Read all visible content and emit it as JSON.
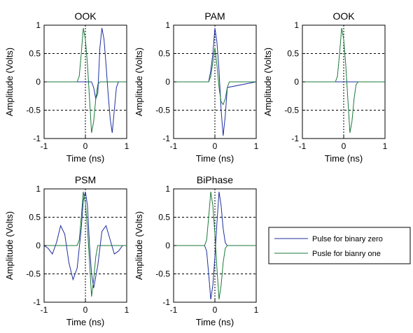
{
  "colors": {
    "zero": "#1f2f9f",
    "one": "#1b7a3a",
    "axis": "#000000",
    "grid": "#000000"
  },
  "legend": {
    "placement": "right",
    "entries": [
      {
        "label": "Pulse for binary zero",
        "color": "#1f2f9f"
      },
      {
        "label": "Pusle for bianry one",
        "color": "#1b7a3a"
      }
    ]
  },
  "chart_data": [
    {
      "type": "line",
      "title": "OOK",
      "xlabel": "Time (ns)",
      "ylabel": "Amplitude (Volts)",
      "xlim": [
        -1,
        1
      ],
      "ylim": [
        -1,
        1
      ],
      "xticks": [
        "-1",
        "0",
        "1"
      ],
      "yticks": [
        "1",
        "0.5",
        "0",
        "-0.5",
        "-1"
      ],
      "grid": "y-dashed at 0.5 and -0.5, x-dotted at 0",
      "series": [
        {
          "color": "#1f2f9f",
          "x": [
            -1,
            0.15,
            0.2,
            0.25,
            0.3,
            0.35,
            0.4,
            0.45,
            0.5,
            0.55,
            0.6,
            0.65,
            0.7,
            0.75,
            0.8,
            0.85,
            0.9,
            1
          ],
          "y": [
            0,
            0,
            -0.1,
            -0.3,
            -0.2,
            0.6,
            0.95,
            0.75,
            0.3,
            -0.2,
            -0.65,
            -0.9,
            -0.5,
            -0.1,
            0,
            0,
            0,
            0
          ]
        },
        {
          "color": "#1b7a3a",
          "x": [
            -1,
            -0.2,
            -0.15,
            -0.1,
            -0.05,
            0,
            0.05,
            0.1,
            0.15,
            0.2,
            0.25,
            0.3,
            0.35,
            1
          ],
          "y": [
            0,
            0,
            0.1,
            0.5,
            0.95,
            0.75,
            0.3,
            -0.3,
            -0.9,
            -0.7,
            -0.3,
            -0.05,
            0,
            0
          ]
        }
      ]
    },
    {
      "type": "line",
      "title": "PAM",
      "xlabel": "Time (ns)",
      "ylabel": "Amplitude (Volts)",
      "xlim": [
        -1,
        1
      ],
      "ylim": [
        -1,
        1
      ],
      "xticks": [
        "-1",
        "0",
        "1"
      ],
      "yticks": [
        "1",
        "0.5",
        "0",
        "-0.5",
        "-1"
      ],
      "grid": "y-dashed at 0.5 and -0.5, x-dotted at 0",
      "series": [
        {
          "color": "#1f2f9f",
          "x": [
            -1,
            -0.15,
            -0.1,
            -0.05,
            0,
            0.05,
            0.1,
            0.15,
            0.2,
            0.25,
            0.3,
            1
          ],
          "y": [
            0,
            0,
            0.2,
            0.5,
            0.95,
            0.7,
            0.2,
            -0.5,
            -0.95,
            -0.6,
            -0.1,
            0
          ]
        },
        {
          "color": "#1b7a3a",
          "x": [
            -1,
            -0.15,
            -0.1,
            -0.05,
            0,
            0.05,
            0.1,
            0.15,
            0.2,
            0.25,
            0.3,
            0.35,
            1
          ],
          "y": [
            0,
            0,
            0.1,
            0.35,
            0.6,
            0.3,
            -0.1,
            -0.35,
            -0.4,
            -0.3,
            -0.1,
            0,
            0
          ]
        }
      ]
    },
    {
      "type": "line",
      "title": "OOK",
      "xlabel": "Time (ns)",
      "ylabel": "Amplitude (Volts)",
      "xlim": [
        -1,
        1
      ],
      "ylim": [
        -1,
        1
      ],
      "xticks": [
        "-1",
        "0",
        "1"
      ],
      "yticks": [
        "1",
        "0.5",
        "0",
        "-0.5",
        "-1"
      ],
      "grid": "y-dashed at 0.5 and -0.5, x-dotted at 0",
      "series": [
        {
          "color": "#1f2f9f",
          "x": [
            -1,
            1
          ],
          "y": [
            0,
            0
          ]
        },
        {
          "color": "#1b7a3a",
          "x": [
            -1,
            -0.2,
            -0.15,
            -0.1,
            -0.05,
            0,
            0.05,
            0.1,
            0.15,
            0.2,
            0.25,
            0.3,
            0.35,
            1
          ],
          "y": [
            0,
            0,
            0.1,
            0.5,
            0.95,
            0.75,
            0.3,
            -0.3,
            -0.9,
            -0.7,
            -0.3,
            -0.05,
            0,
            0
          ]
        }
      ]
    },
    {
      "type": "line",
      "title": "PSM",
      "xlabel": "Time (ns)",
      "ylabel": "Amplitude (Volts)",
      "xlim": [
        -1,
        1
      ],
      "ylim": [
        -1,
        1
      ],
      "xticks": [
        "-1",
        "0",
        "1"
      ],
      "yticks": [
        "1",
        "0.5",
        "0",
        "-0.5",
        "-1"
      ],
      "grid": "y-dashed at 0.5 and -0.5, x-dotted at 0",
      "series": [
        {
          "color": "#1f2f9f",
          "x": [
            -1,
            -0.9,
            -0.8,
            -0.7,
            -0.6,
            -0.5,
            -0.4,
            -0.3,
            -0.2,
            -0.1,
            -0.05,
            0,
            0.05,
            0.1,
            0.15,
            0.2,
            0.3,
            0.4,
            0.5,
            0.6,
            0.7,
            0.8,
            0.9,
            1
          ],
          "y": [
            0,
            -0.05,
            -0.15,
            0.05,
            0.35,
            0.2,
            -0.3,
            -0.6,
            -0.4,
            0.3,
            0.8,
            0.95,
            0.7,
            0.0,
            -0.5,
            -0.75,
            -0.35,
            0.25,
            0.35,
            0.1,
            -0.15,
            -0.1,
            0.0,
            0
          ]
        },
        {
          "color": "#1b7a3a",
          "x": [
            -1,
            -0.2,
            -0.15,
            -0.1,
            -0.05,
            0,
            0.05,
            0.1,
            0.15,
            0.2,
            0.25,
            0.3,
            1
          ],
          "y": [
            0,
            0,
            0.1,
            0.5,
            0.95,
            0.75,
            0.3,
            -0.3,
            -0.9,
            -0.6,
            -0.2,
            0,
            0
          ]
        }
      ]
    },
    {
      "type": "line",
      "title": "BiPhase",
      "xlabel": "Time (ns)",
      "ylabel": "Amplitude (Volts)",
      "xlim": [
        -1,
        1
      ],
      "ylim": [
        -1,
        1
      ],
      "xticks": [
        "-1",
        "0",
        "1"
      ],
      "yticks": [
        "1",
        "0.5",
        "0",
        "-0.5",
        "-1"
      ],
      "grid": "y-dashed at 0.5 and -0.5, x-dotted at 0",
      "series": [
        {
          "color": "#1f2f9f",
          "x": [
            -1,
            -0.25,
            -0.2,
            -0.15,
            -0.1,
            -0.05,
            0,
            0.05,
            0.1,
            0.15,
            0.2,
            0.25,
            0.3,
            1
          ],
          "y": [
            0,
            0,
            -0.1,
            -0.5,
            -0.95,
            -0.7,
            -0.2,
            0.4,
            0.95,
            0.7,
            0.3,
            0.05,
            0,
            0
          ]
        },
        {
          "color": "#1b7a3a",
          "x": [
            -1,
            -0.25,
            -0.2,
            -0.15,
            -0.1,
            -0.05,
            0,
            0.05,
            0.1,
            0.15,
            0.2,
            0.25,
            0.3,
            1
          ],
          "y": [
            0,
            0,
            0.1,
            0.5,
            0.95,
            0.7,
            0.2,
            -0.4,
            -0.95,
            -0.7,
            -0.3,
            -0.05,
            0,
            0
          ]
        }
      ]
    }
  ]
}
